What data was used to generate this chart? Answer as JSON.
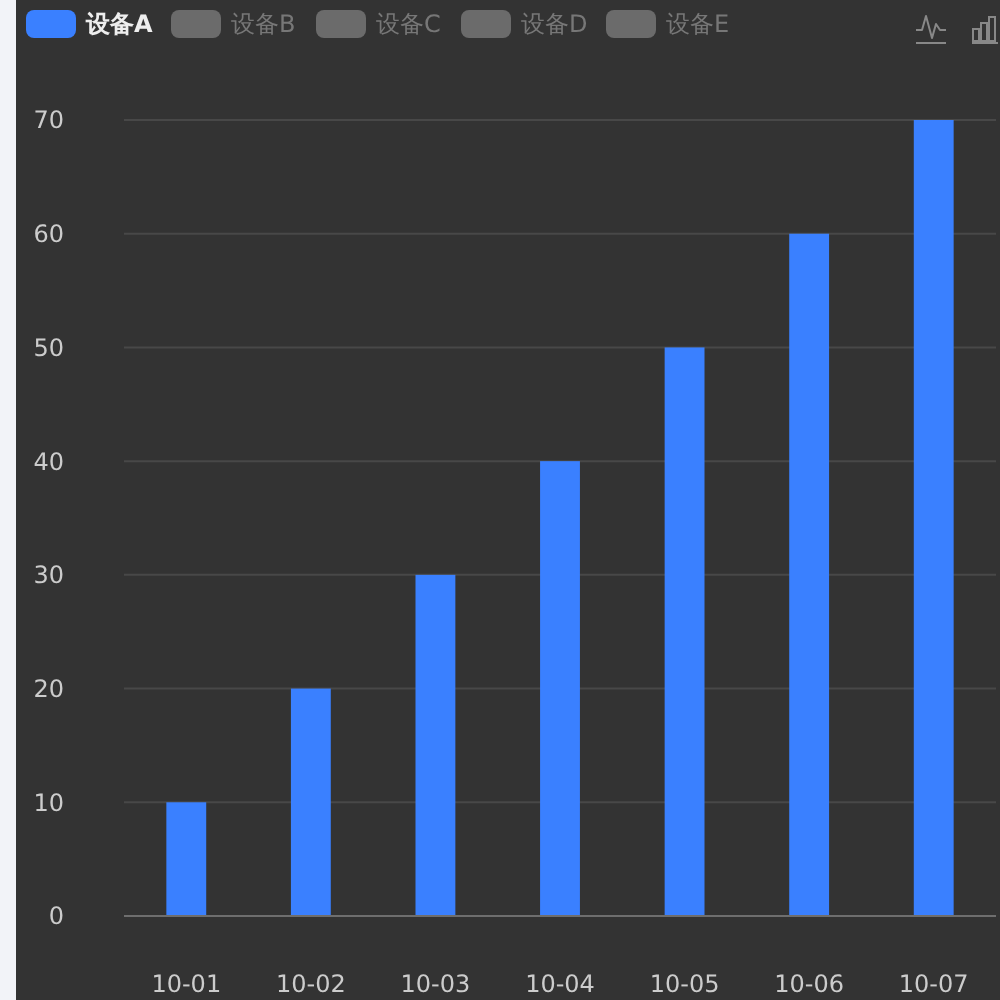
{
  "chart_data": {
    "type": "bar",
    "categories": [
      "10-01",
      "10-02",
      "10-03",
      "10-04",
      "10-05",
      "10-06",
      "10-07"
    ],
    "series": [
      {
        "name": "设备A",
        "color": "#3a80ff",
        "values": [
          10,
          20,
          30,
          40,
          50,
          60,
          70
        ]
      },
      {
        "name": "设备B",
        "values": [
          null,
          null,
          null,
          null,
          null,
          null,
          null
        ]
      },
      {
        "name": "设备C",
        "values": [
          null,
          null,
          null,
          null,
          null,
          null,
          null
        ]
      },
      {
        "name": "设备D",
        "values": [
          null,
          null,
          null,
          null,
          null,
          null,
          null
        ]
      },
      {
        "name": "设备E",
        "values": [
          null,
          null,
          null,
          null,
          null,
          null,
          null
        ]
      }
    ],
    "ylim": [
      0,
      70
    ],
    "yticks": [
      0,
      10,
      20,
      30,
      40,
      50,
      60,
      70
    ],
    "grid": "y",
    "legend": "top left"
  }
}
